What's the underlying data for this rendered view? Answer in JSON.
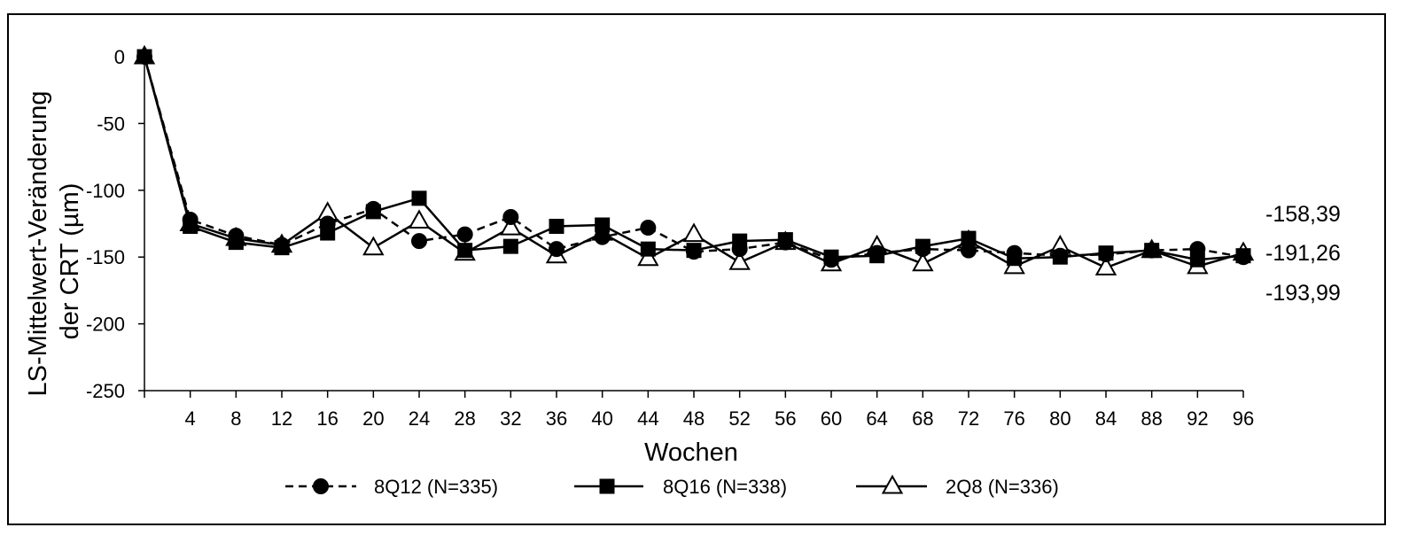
{
  "chart_data": {
    "type": "line",
    "xlabel": "Wochen",
    "ylabel": "LS-Mittelwert-Veränderung der CRT (µm)",
    "ylabel_lines": [
      "LS-Mittelwert-Veränderung",
      "der CRT (µm)"
    ],
    "ylim": [
      -250,
      0
    ],
    "yticks": [
      0,
      -50,
      -100,
      -150,
      -200,
      -250
    ],
    "ytick_labels": [
      "0",
      "-50",
      "-100",
      "-150",
      "-200",
      "-250"
    ],
    "x": [
      0,
      4,
      8,
      12,
      16,
      20,
      24,
      28,
      32,
      36,
      40,
      44,
      48,
      52,
      56,
      60,
      64,
      68,
      72,
      76,
      80,
      84,
      88,
      92,
      96
    ],
    "xtick_labels": [
      "",
      "4",
      "8",
      "12",
      "16",
      "20",
      "24",
      "28",
      "32",
      "36",
      "40",
      "44",
      "48",
      "52",
      "56",
      "60",
      "64",
      "68",
      "72",
      "76",
      "80",
      "84",
      "88",
      "92",
      "96"
    ],
    "xlim": [
      0,
      96
    ],
    "grid": false,
    "legend_position": "bottom",
    "series": [
      {
        "name": "8Q12 (N=335)",
        "line": "dashed",
        "marker": "circle-filled",
        "values": [
          0,
          -122,
          -134,
          -141,
          -125,
          -114,
          -138,
          -133,
          -120,
          -144,
          -135,
          -128,
          -146,
          -144,
          -139,
          -152,
          -147,
          -144,
          -145,
          -147,
          -149,
          -148,
          -145,
          -144,
          -150
        ]
      },
      {
        "name": "8Q16 (N=338)",
        "line": "solid",
        "marker": "square-filled",
        "values": [
          0,
          -127,
          -139,
          -143,
          -132,
          -116,
          -106,
          -145,
          -142,
          -127,
          -126,
          -144,
          -145,
          -138,
          -137,
          -150,
          -149,
          -142,
          -136,
          -151,
          -150,
          -147,
          -145,
          -152,
          -149
        ]
      },
      {
        "name": "2Q8 (N=336)",
        "line": "solid",
        "marker": "triangle-open",
        "values": [
          0,
          -125,
          -136,
          -141,
          -117,
          -143,
          -123,
          -147,
          -128,
          -149,
          -132,
          -151,
          -133,
          -154,
          -139,
          -155,
          -142,
          -155,
          -138,
          -157,
          -142,
          -158,
          -145,
          -157,
          -147
        ]
      }
    ],
    "annotations": [
      "-158,39",
      "-191,26",
      "-193,99"
    ]
  }
}
